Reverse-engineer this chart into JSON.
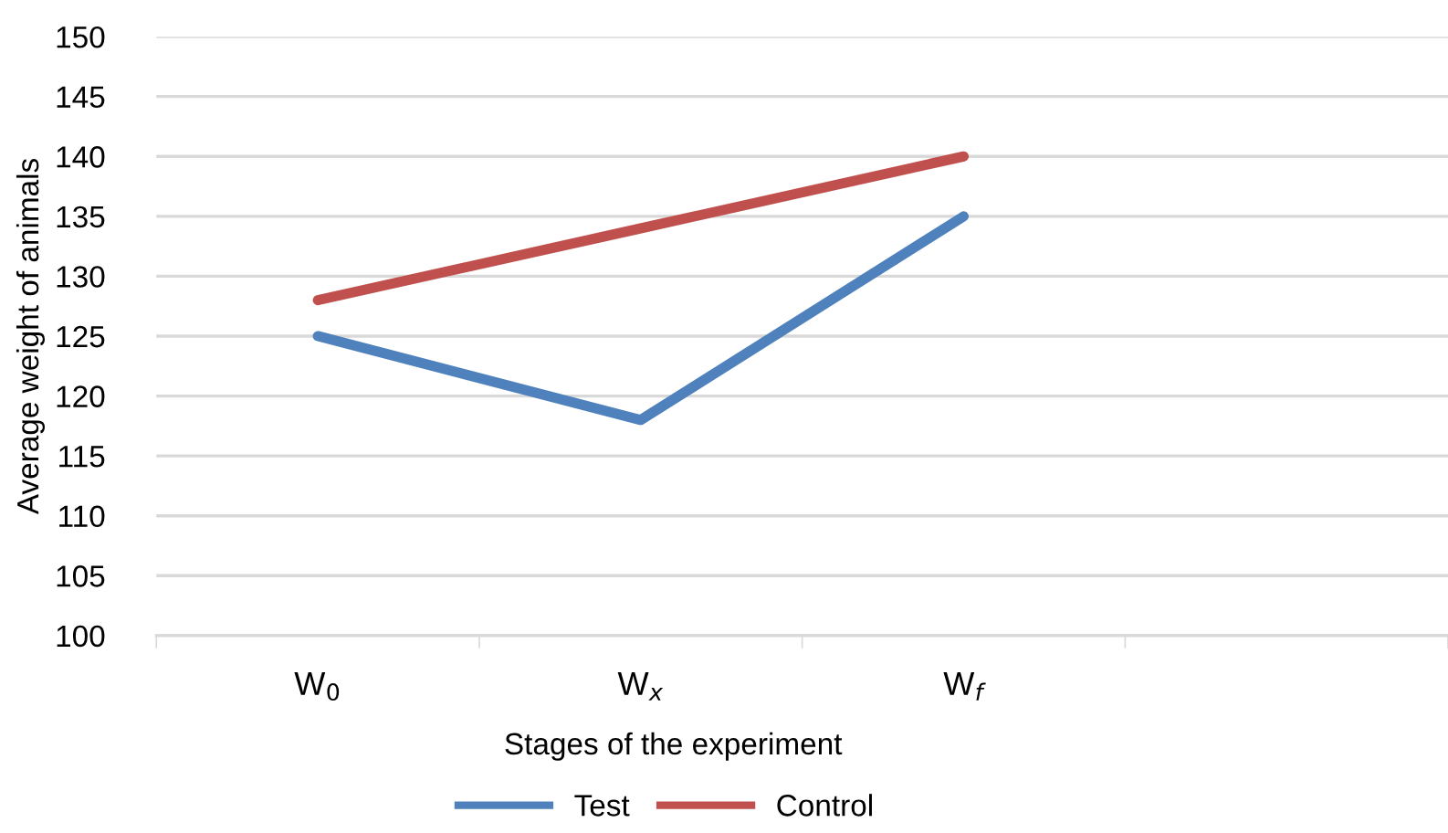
{
  "chart_data": {
    "type": "line",
    "xlabel": "Stages of the experiment",
    "ylabel": "Average weight of animals",
    "categories": [
      "W$_{0}$",
      "W$_{x}$",
      "W$_{f}$",
      null
    ],
    "series": [
      {
        "name": "Test",
        "color": "#4f81bd",
        "values": [
          125,
          118,
          135,
          null
        ]
      },
      {
        "name": "Control",
        "color": "#c0504d",
        "values": [
          128,
          134,
          140,
          null
        ]
      }
    ],
    "ylim": [
      100,
      150
    ],
    "yticks": [
      100,
      105,
      110,
      115,
      120,
      125,
      130,
      135,
      140,
      145,
      150
    ],
    "grid": "y",
    "legend": "bottom",
    "marker": "none",
    "line_style": "solid"
  }
}
